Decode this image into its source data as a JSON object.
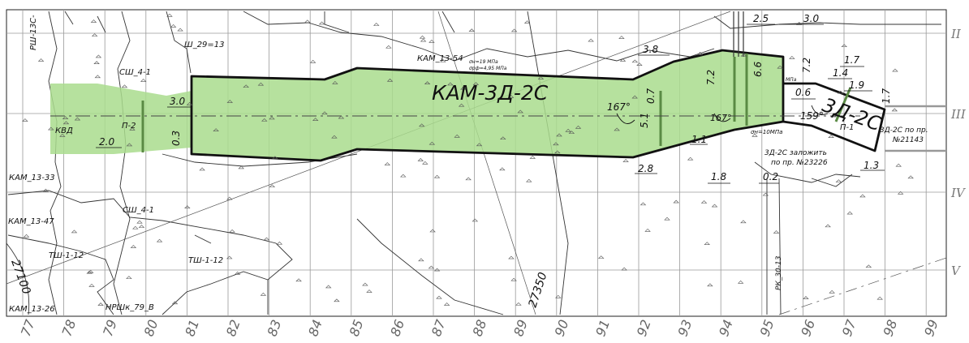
{
  "drawing": {
    "grid_columns": [
      "77",
      "78",
      "79",
      "80",
      "81",
      "82",
      "83",
      "84",
      "85",
      "86",
      "87",
      "88",
      "89",
      "90",
      "91",
      "92",
      "93",
      "94",
      "95",
      "96",
      "97",
      "98",
      "99"
    ],
    "grid_rows": [
      "II",
      "III",
      "IV",
      "V"
    ],
    "title": "КАМ-3Д-2С",
    "secondary_title": "3Д-2С",
    "labels": {
      "rsh": "РШ-13С-",
      "sh_29_13": "Ш_29=13",
      "kam_13_54": "КАМ_13-54",
      "sigma1": "σн=19 МПа",
      "sigma2": "σрф=4,95 МПа",
      "sh_4_1_top": "СШ_4-1",
      "kvd": "КВД",
      "p2": "П-2",
      "kam_13_33": "КАМ_13-33",
      "kam_13_47": "КАМ_13-47",
      "sh_4_1_mid": "СШ_4-1",
      "tsh_1_12a": "ТШ-1-12",
      "tsh_1_12b": "ТШ-1-12",
      "kam_13_26": "КАМ_13-26",
      "nrshk": "НРШк_79_В",
      "n27350": "27350",
      "n27100": "27100",
      "rk_30_13": "РК_30-13",
      "p1": "П-1",
      "sigma3": "σн=10МПа",
      "note1a": "3Д-2С по пр.",
      "note1b": "№21143",
      "note2a": "3Д-2С заложить",
      "note2b": "по пр. №23226",
      "mpa": "МПа"
    },
    "dimensions": {
      "d25": "2.5",
      "d30a": "3.0",
      "d38": "3.8",
      "d72a": "7.2",
      "d72b": "7.2",
      "d66": "6.6",
      "d17": "1.7",
      "d14": "1.4",
      "d19": "1.9",
      "d17b": "1.7",
      "d06": "0.6",
      "d30b": "3.0",
      "d03": "0.3",
      "d20": "2.0",
      "d07": "0.7",
      "d51": "5.1",
      "d11": "1.1",
      "d28": "2.8",
      "d18": "1.8",
      "d02": "0.2",
      "d13": "1.3"
    },
    "angles": {
      "a167a": "167°",
      "a167b": "167°",
      "a159": "159°"
    }
  }
}
